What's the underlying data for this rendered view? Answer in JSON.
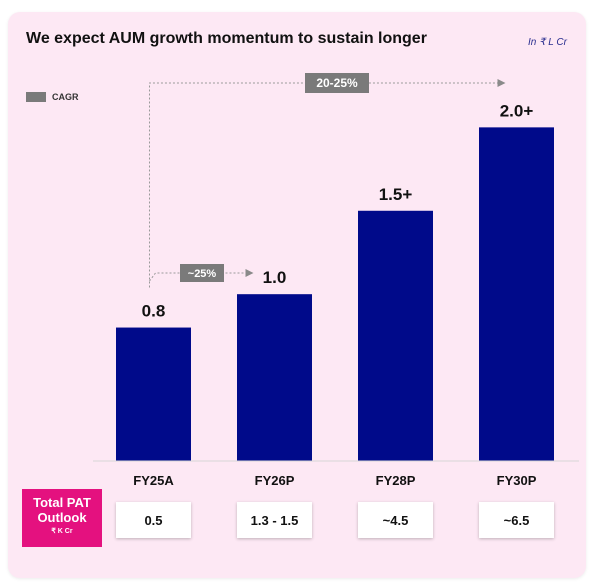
{
  "chart_data": {
    "type": "bar",
    "title": "We expect AUM growth momentum to sustain longer",
    "unit_note": "In ₹ L Cr",
    "categories": [
      "FY25A",
      "FY26P",
      "FY28P",
      "FY30P"
    ],
    "values": [
      0.8,
      1.0,
      1.5,
      2.0
    ],
    "value_labels": [
      "0.8",
      "1.0",
      "1.5+",
      "2.0+"
    ],
    "bar_color": "#000a8a",
    "ylim": [
      0,
      2.2
    ],
    "legend": {
      "label": "CAGR",
      "color": "#7a7a7a",
      "placement": "top-left"
    },
    "annotations": [
      {
        "label": "~25%",
        "from": "FY25A",
        "to": "FY26P"
      },
      {
        "label": "20-25%",
        "from": "FY25A",
        "to": "FY30P"
      }
    ]
  },
  "pat_outlook": {
    "label": "Total PAT Outlook",
    "unit": "₹ K Cr",
    "color": "#e4117f",
    "values": [
      "0.5",
      "1.3 - 1.5",
      "~4.5",
      "~6.5"
    ]
  }
}
